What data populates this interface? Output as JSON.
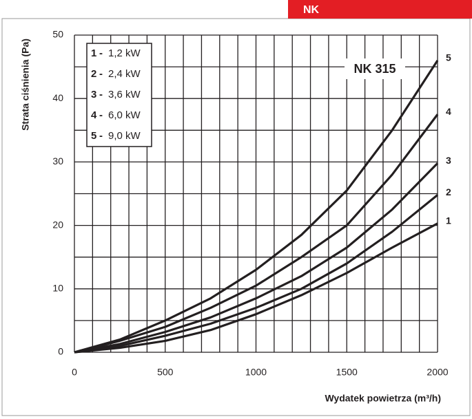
{
  "header": "NK",
  "chart_data": {
    "type": "line",
    "y_label": "Strata ciśnienia (Pa)",
    "x_label": "Wydatek powietrza (m³/h)",
    "annotation": "NK 315",
    "legend_separator": "-",
    "x": [
      0,
      250,
      500,
      750,
      1000,
      1250,
      1500,
      1750,
      2000
    ],
    "xlim": [
      0,
      2000
    ],
    "xticks": [
      0,
      500,
      1000,
      1500,
      2000
    ],
    "ylim": [
      0,
      50
    ],
    "yticks": [
      0,
      10,
      20,
      30,
      40,
      50
    ],
    "xgrid": [
      0,
      100,
      200,
      300,
      400,
      500,
      600,
      700,
      800,
      900,
      1000,
      1100,
      1200,
      1300,
      1400,
      1500,
      1600,
      1700,
      1800,
      1900,
      2000
    ],
    "ygrid": [
      0,
      5,
      10,
      15,
      20,
      25,
      30,
      35,
      40,
      45,
      50
    ],
    "legend": "top-left",
    "series": [
      {
        "label": "1",
        "name": "1,2 kW",
        "color": "#231f20",
        "values": [
          0,
          0.7,
          1.8,
          3.5,
          6,
          9,
          12.5,
          16.5,
          20.3
        ]
      },
      {
        "label": "2",
        "name": "2,4 kW",
        "color": "#231f20",
        "values": [
          0,
          1,
          2.6,
          4.5,
          7,
          10,
          14,
          19,
          24.8
        ]
      },
      {
        "label": "3",
        "name": "3,6 kW",
        "color": "#231f20",
        "values": [
          0,
          1.3,
          3.2,
          5.5,
          8.5,
          12,
          16.5,
          22.5,
          29.8
        ]
      },
      {
        "label": "4",
        "name": "6,0 kW",
        "color": "#231f20",
        "values": [
          0,
          1.8,
          4,
          7,
          10.5,
          15,
          20,
          28,
          37.5
        ]
      },
      {
        "label": "5",
        "name": "9,0 kW",
        "color": "#231f20",
        "values": [
          0,
          2,
          5,
          8.5,
          13,
          18.5,
          25.5,
          35,
          46
        ]
      }
    ]
  }
}
